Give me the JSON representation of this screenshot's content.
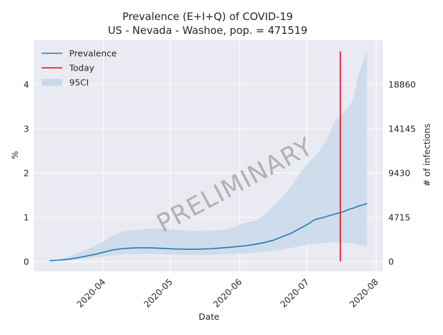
{
  "chart_data": {
    "type": "line",
    "title_line1": "Prevalence (E+I+Q) of COVID-19",
    "title_line2": "US - Nevada - Washoe, pop. = 471519",
    "xlabel": "Date",
    "ylabel": "%",
    "ylabel_right": "# of infections",
    "watermark": "PRELIMINARY",
    "xlim": [
      "2020-03-01",
      "2020-08-04"
    ],
    "ylim": [
      -0.22,
      5.0
    ],
    "x_ticks": [
      {
        "date": "2020-04-01",
        "label": "2020-04"
      },
      {
        "date": "2020-05-01",
        "label": "2020-05"
      },
      {
        "date": "2020-06-01",
        "label": "2020-06"
      },
      {
        "date": "2020-07-01",
        "label": "2020-07"
      },
      {
        "date": "2020-08-01",
        "label": "2020-08"
      }
    ],
    "y_ticks": [
      {
        "value": 0,
        "label": "0"
      },
      {
        "value": 1,
        "label": "1"
      },
      {
        "value": 2,
        "label": "2"
      },
      {
        "value": 3,
        "label": "3"
      },
      {
        "value": 4,
        "label": "4"
      }
    ],
    "y_ticks_right": [
      {
        "value": 0,
        "label": "0"
      },
      {
        "value": 1,
        "label": "4715"
      },
      {
        "value": 2,
        "label": "9430"
      },
      {
        "value": 3,
        "label": "14145"
      },
      {
        "value": 4,
        "label": "18860"
      }
    ],
    "grid": true,
    "legend_position": "top-left",
    "legend": [
      {
        "label": "Prevalence",
        "kind": "line",
        "color": "#1f77b4"
      },
      {
        "label": "Today",
        "kind": "line",
        "color": "#e8001c"
      },
      {
        "label": "95CI",
        "kind": "band",
        "color": "#c9d9ea"
      }
    ],
    "colors": {
      "prevalence": "#1f77b4",
      "today": "#e8001c",
      "band": "#c9d9ea",
      "plot_bg": "#eaeaf2",
      "grid": "#ffffff"
    },
    "today": "2020-07-16",
    "today_range": [
      0,
      4.75
    ],
    "series": [
      {
        "name": "Prevalence",
        "points": [
          [
            "2020-03-08",
            0.02
          ],
          [
            "2020-03-12",
            0.03
          ],
          [
            "2020-03-16",
            0.05
          ],
          [
            "2020-03-20",
            0.08
          ],
          [
            "2020-03-24",
            0.12
          ],
          [
            "2020-03-28",
            0.16
          ],
          [
            "2020-04-01",
            0.21
          ],
          [
            "2020-04-05",
            0.26
          ],
          [
            "2020-04-09",
            0.29
          ],
          [
            "2020-04-13",
            0.305
          ],
          [
            "2020-04-17",
            0.31
          ],
          [
            "2020-04-21",
            0.31
          ],
          [
            "2020-04-25",
            0.305
          ],
          [
            "2020-04-29",
            0.295
          ],
          [
            "2020-05-03",
            0.285
          ],
          [
            "2020-05-07",
            0.28
          ],
          [
            "2020-05-11",
            0.278
          ],
          [
            "2020-05-15",
            0.283
          ],
          [
            "2020-05-19",
            0.29
          ],
          [
            "2020-05-23",
            0.305
          ],
          [
            "2020-05-27",
            0.32
          ],
          [
            "2020-05-31",
            0.34
          ],
          [
            "2020-06-04",
            0.36
          ],
          [
            "2020-06-08",
            0.39
          ],
          [
            "2020-06-12",
            0.43
          ],
          [
            "2020-06-16",
            0.48
          ],
          [
            "2020-06-20",
            0.56
          ],
          [
            "2020-06-24",
            0.64
          ],
          [
            "2020-06-28",
            0.75
          ],
          [
            "2020-07-02",
            0.86
          ],
          [
            "2020-07-04",
            0.93
          ],
          [
            "2020-07-06",
            0.97
          ],
          [
            "2020-07-08",
            0.99
          ],
          [
            "2020-07-10",
            1.02
          ],
          [
            "2020-07-12",
            1.05
          ],
          [
            "2020-07-14",
            1.08
          ],
          [
            "2020-07-16",
            1.1
          ],
          [
            "2020-07-18",
            1.14
          ],
          [
            "2020-07-20",
            1.18
          ],
          [
            "2020-07-22",
            1.21
          ],
          [
            "2020-07-24",
            1.25
          ],
          [
            "2020-07-26",
            1.28
          ],
          [
            "2020-07-28",
            1.31
          ]
        ]
      },
      {
        "name": "95CI",
        "upper": [
          [
            "2020-03-08",
            0.03
          ],
          [
            "2020-03-12",
            0.05
          ],
          [
            "2020-03-16",
            0.1
          ],
          [
            "2020-03-20",
            0.18
          ],
          [
            "2020-03-24",
            0.26
          ],
          [
            "2020-03-28",
            0.34
          ],
          [
            "2020-04-01",
            0.45
          ],
          [
            "2020-04-05",
            0.58
          ],
          [
            "2020-04-09",
            0.67
          ],
          [
            "2020-04-13",
            0.7
          ],
          [
            "2020-04-17",
            0.72
          ],
          [
            "2020-04-21",
            0.74
          ],
          [
            "2020-04-25",
            0.75
          ],
          [
            "2020-04-29",
            0.74
          ],
          [
            "2020-05-03",
            0.72
          ],
          [
            "2020-05-07",
            0.7
          ],
          [
            "2020-05-11",
            0.69
          ],
          [
            "2020-05-15",
            0.69
          ],
          [
            "2020-05-19",
            0.7
          ],
          [
            "2020-05-23",
            0.71
          ],
          [
            "2020-05-27",
            0.73
          ],
          [
            "2020-05-31",
            0.82
          ],
          [
            "2020-06-04",
            0.88
          ],
          [
            "2020-06-08",
            0.92
          ],
          [
            "2020-06-12",
            1.05
          ],
          [
            "2020-06-16",
            1.25
          ],
          [
            "2020-06-20",
            1.45
          ],
          [
            "2020-06-24",
            1.7
          ],
          [
            "2020-06-28",
            2.0
          ],
          [
            "2020-07-02",
            2.25
          ],
          [
            "2020-07-06",
            2.45
          ],
          [
            "2020-07-10",
            2.75
          ],
          [
            "2020-07-12",
            3.0
          ],
          [
            "2020-07-14",
            3.2
          ],
          [
            "2020-07-16",
            3.3
          ],
          [
            "2020-07-20",
            3.5
          ],
          [
            "2020-07-22",
            3.7
          ],
          [
            "2020-07-24",
            4.2
          ],
          [
            "2020-07-26",
            4.5
          ],
          [
            "2020-07-28",
            4.72
          ]
        ],
        "lower": [
          [
            "2020-03-08",
            0.01
          ],
          [
            "2020-03-12",
            0.02
          ],
          [
            "2020-03-16",
            0.03
          ],
          [
            "2020-03-20",
            0.05
          ],
          [
            "2020-03-24",
            0.07
          ],
          [
            "2020-03-28",
            0.09
          ],
          [
            "2020-04-01",
            0.11
          ],
          [
            "2020-04-05",
            0.14
          ],
          [
            "2020-04-09",
            0.16
          ],
          [
            "2020-04-13",
            0.17
          ],
          [
            "2020-04-17",
            0.17
          ],
          [
            "2020-04-21",
            0.17
          ],
          [
            "2020-04-25",
            0.165
          ],
          [
            "2020-04-29",
            0.16
          ],
          [
            "2020-05-03",
            0.155
          ],
          [
            "2020-05-07",
            0.15
          ],
          [
            "2020-05-11",
            0.15
          ],
          [
            "2020-05-15",
            0.15
          ],
          [
            "2020-05-19",
            0.155
          ],
          [
            "2020-05-23",
            0.16
          ],
          [
            "2020-05-27",
            0.17
          ],
          [
            "2020-05-31",
            0.18
          ],
          [
            "2020-06-04",
            0.19
          ],
          [
            "2020-06-08",
            0.2
          ],
          [
            "2020-06-12",
            0.22
          ],
          [
            "2020-06-16",
            0.24
          ],
          [
            "2020-06-20",
            0.27
          ],
          [
            "2020-06-24",
            0.31
          ],
          [
            "2020-06-28",
            0.35
          ],
          [
            "2020-07-02",
            0.39
          ],
          [
            "2020-07-06",
            0.41
          ],
          [
            "2020-07-10",
            0.43
          ],
          [
            "2020-07-14",
            0.44
          ],
          [
            "2020-07-16",
            0.44
          ],
          [
            "2020-07-20",
            0.42
          ],
          [
            "2020-07-24",
            0.38
          ],
          [
            "2020-07-28",
            0.34
          ]
        ]
      }
    ]
  }
}
